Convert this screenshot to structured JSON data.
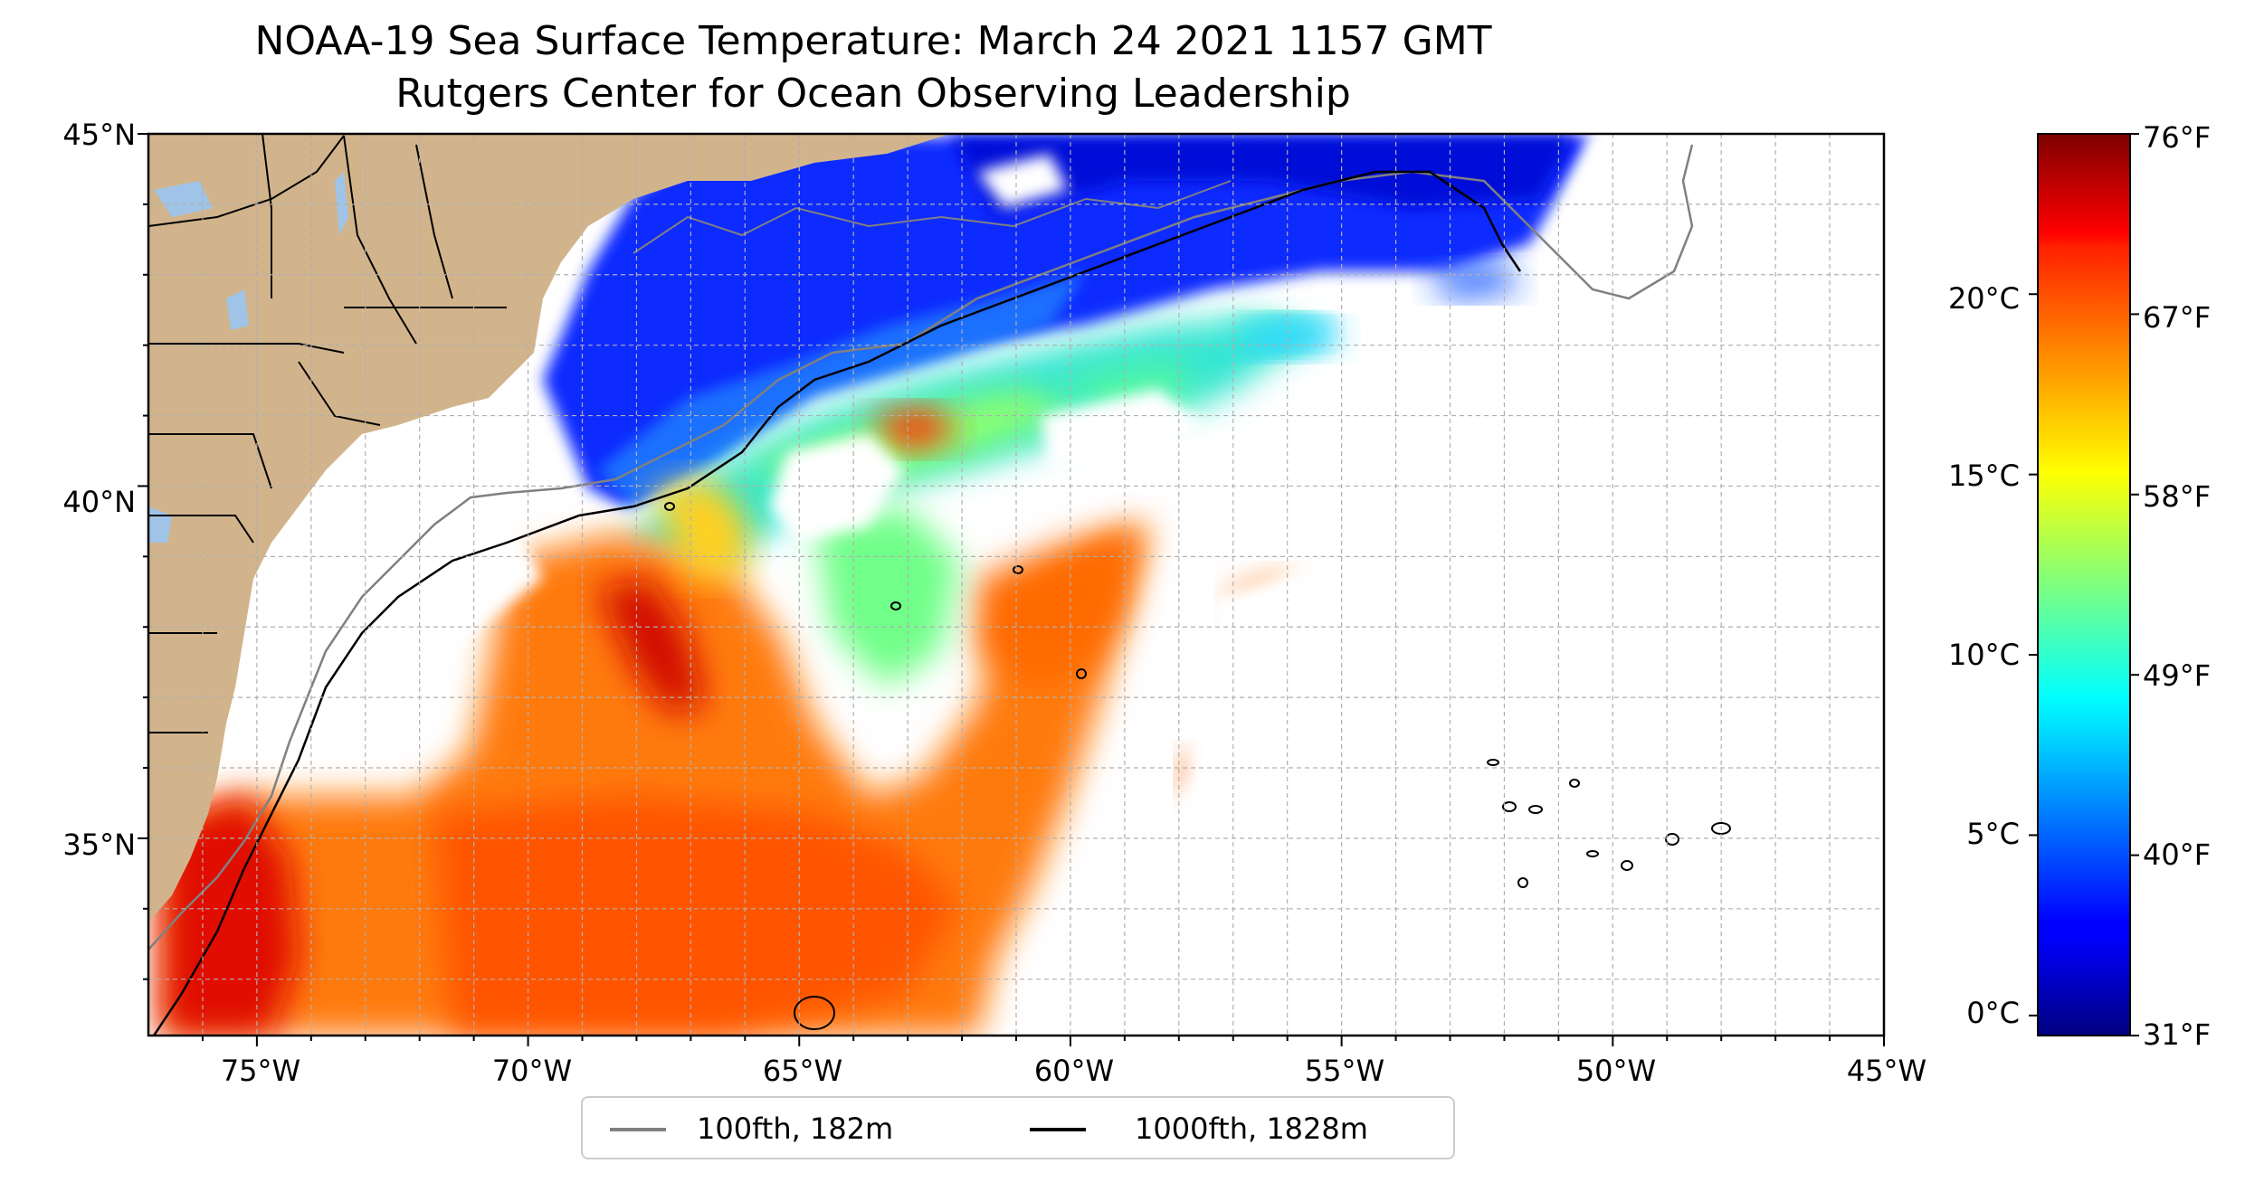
{
  "title": "NOAA-19 Sea Surface Temperature: March 24 2021 1157 GMT",
  "subtitle": "Rutgers Center for Ocean Observing Leadership",
  "map": {
    "lon_range": [
      -77,
      -45
    ],
    "lat_range": [
      32.2,
      45
    ],
    "lat_ticks": [
      {
        "label": "45°N"
      },
      {
        "label": "40°N"
      },
      {
        "label": "35°N"
      }
    ],
    "lon_ticks": [
      {
        "label": "75°W"
      },
      {
        "label": "70°W"
      },
      {
        "label": "65°W"
      },
      {
        "label": "60°W"
      },
      {
        "label": "55°W"
      },
      {
        "label": "50°W"
      },
      {
        "label": "45°W"
      }
    ],
    "land_color": "#d2b48c",
    "lake_color": "#9fc4e8",
    "cloud_color": "#ffffff",
    "gridlines": "dashed"
  },
  "colorbar": {
    "colormap": "jet",
    "celsius_labels": [
      "20°C",
      "15°C",
      "10°C",
      "5°C",
      "0°C"
    ],
    "fahrenheit_labels": [
      "76°F",
      "67°F",
      "58°F",
      "49°F",
      "40°F",
      "31°F"
    ],
    "range_f": [
      31,
      76
    ]
  },
  "legend": {
    "items": [
      {
        "label": "100fth, 182m",
        "color": "#808080"
      },
      {
        "label": "1000fth, 1828m",
        "color": "#000000"
      }
    ]
  }
}
